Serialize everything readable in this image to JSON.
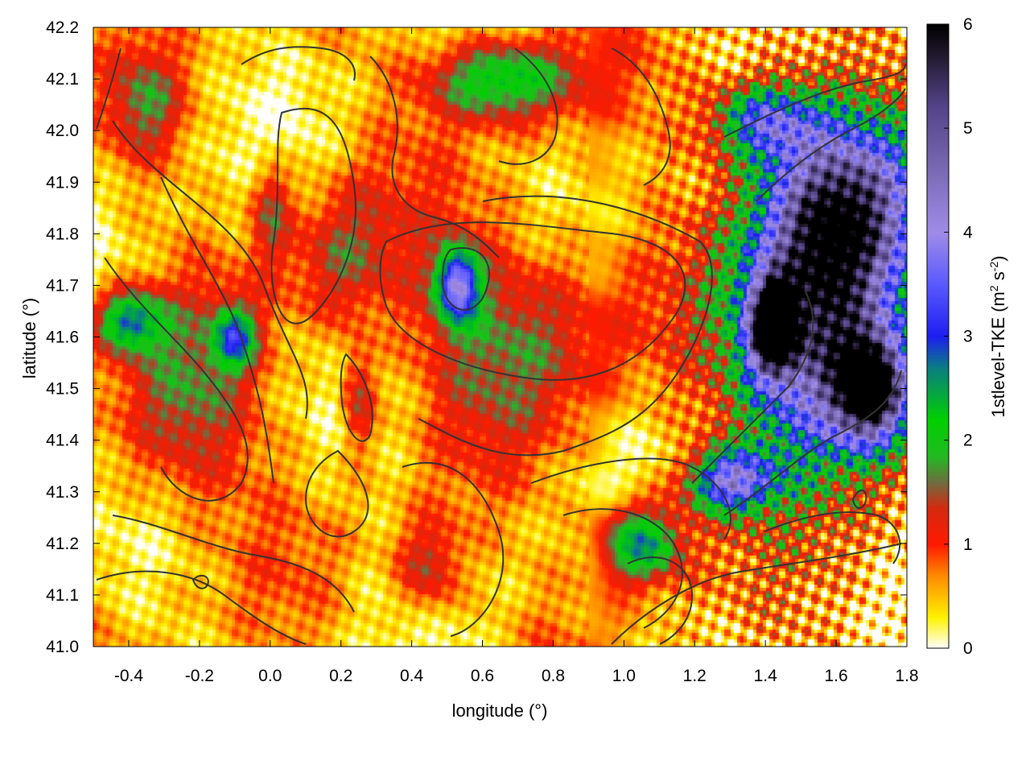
{
  "chart_data": {
    "type": "heatmap",
    "xlabel": "longitude (°)",
    "ylabel": "latitude (°)",
    "colorbar_label": "1stlevel-TKE (m",
    "colorbar_label_sup1": "2",
    "colorbar_label_mid": " s",
    "colorbar_label_sup2": "-2",
    "colorbar_label_end": ")",
    "xlim": [
      -0.5,
      1.8
    ],
    "ylim": [
      41.0,
      42.2
    ],
    "clim": [
      0,
      6
    ],
    "xticks": [
      -0.4,
      -0.2,
      0.0,
      0.2,
      0.4,
      0.6,
      0.8,
      1.0,
      1.2,
      1.4,
      1.6,
      1.8
    ],
    "xtick_labels": [
      "-0.4",
      "-0.2",
      "0.0",
      "0.2",
      "0.4",
      "0.6",
      "0.8",
      "1.0",
      "1.2",
      "1.4",
      "1.6",
      "1.8"
    ],
    "yticks": [
      41.0,
      41.1,
      41.2,
      41.3,
      41.4,
      41.5,
      41.6,
      41.7,
      41.8,
      41.9,
      42.0,
      42.1,
      42.2
    ],
    "ytick_labels": [
      "41.0",
      "41.1",
      "41.2",
      "41.3",
      "41.4",
      "41.5",
      "41.6",
      "41.7",
      "41.8",
      "41.9",
      "42.0",
      "42.1",
      "42.2"
    ],
    "cticks": [
      0,
      1,
      2,
      3,
      4,
      5,
      6
    ],
    "ctick_labels": [
      "0",
      "1",
      "2",
      "3",
      "4",
      "5",
      "6"
    ],
    "colormap": [
      [
        0.0,
        "#ffffff"
      ],
      [
        0.3,
        "#fff200"
      ],
      [
        0.7,
        "#ff8a00"
      ],
      [
        1.0,
        "#ff1a00"
      ],
      [
        1.35,
        "#d42a10"
      ],
      [
        1.6,
        "#6e6e40"
      ],
      [
        1.85,
        "#22bb22"
      ],
      [
        2.2,
        "#00d000"
      ],
      [
        2.7,
        "#0a7d82"
      ],
      [
        3.0,
        "#1e1ef0"
      ],
      [
        3.5,
        "#5a5aff"
      ],
      [
        4.0,
        "#a08ce8"
      ],
      [
        4.6,
        "#7a6ab4"
      ],
      [
        5.2,
        "#55448a"
      ],
      [
        5.7,
        "#221a30"
      ],
      [
        6.0,
        "#000000"
      ]
    ],
    "hotspots": [
      [
        1.55,
        41.6,
        0.22,
        0.25,
        4.8
      ],
      [
        1.62,
        41.85,
        0.22,
        0.18,
        4.3
      ],
      [
        1.42,
        41.62,
        0.06,
        0.08,
        5.6
      ],
      [
        1.7,
        41.5,
        0.1,
        0.1,
        5.2
      ],
      [
        1.3,
        41.32,
        0.12,
        0.06,
        3.2
      ],
      [
        1.05,
        41.2,
        0.12,
        0.08,
        2.4
      ],
      [
        0.53,
        41.7,
        0.06,
        0.07,
        3.0
      ],
      [
        -0.4,
        41.63,
        0.1,
        0.06,
        2.2
      ],
      [
        -0.1,
        41.6,
        0.06,
        0.06,
        2.0
      ],
      [
        0.65,
        42.1,
        0.2,
        0.08,
        2.0
      ],
      [
        1.4,
        42.02,
        0.15,
        0.08,
        2.8
      ],
      [
        0.7,
        41.62,
        0.3,
        0.2,
        1.2
      ],
      [
        -0.25,
        41.45,
        0.2,
        0.2,
        1.1
      ],
      [
        0.2,
        41.75,
        0.15,
        0.15,
        1.0
      ],
      [
        0.25,
        41.48,
        0.05,
        0.1,
        1.2
      ],
      [
        0.45,
        41.15,
        0.1,
        0.1,
        1.2
      ],
      [
        -0.35,
        42.05,
        0.1,
        0.1,
        0.9
      ],
      [
        0.0,
        41.85,
        0.06,
        0.1,
        1.1
      ]
    ]
  }
}
